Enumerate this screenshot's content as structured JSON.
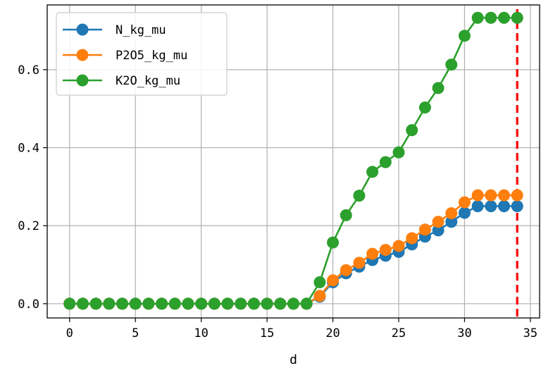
{
  "chart_data": {
    "type": "line",
    "title": "",
    "xlabel": "d",
    "ylabel": "",
    "xlim": [
      -1.7,
      35.7
    ],
    "ylim": [
      -0.0365,
      0.766
    ],
    "xticks": [
      0,
      5,
      10,
      15,
      20,
      25,
      30,
      35
    ],
    "xtick_labels": [
      "0",
      "5",
      "10",
      "15",
      "20",
      "25",
      "30",
      "35"
    ],
    "yticks": [
      0.0,
      0.2,
      0.4,
      0.6
    ],
    "ytick_labels": [
      "0.0",
      "0.2",
      "0.4",
      "0.6"
    ],
    "grid": true,
    "legend_position": "upper-left",
    "marker_line_x": 34,
    "marker_line_color": "#ff0000",
    "x": [
      0,
      1,
      2,
      3,
      4,
      5,
      6,
      7,
      8,
      9,
      10,
      11,
      12,
      13,
      14,
      15,
      16,
      17,
      18,
      19,
      20,
      21,
      22,
      23,
      24,
      25,
      26,
      27,
      28,
      29,
      30,
      31,
      32,
      33,
      34
    ],
    "series": [
      {
        "name": "N_kg_mu",
        "color": "#1f77b4",
        "values": [
          0,
          0,
          0,
          0,
          0,
          0,
          0,
          0,
          0,
          0,
          0,
          0,
          0,
          0,
          0,
          0,
          0,
          0,
          0,
          0.018,
          0.055,
          0.078,
          0.095,
          0.112,
          0.123,
          0.133,
          0.152,
          0.172,
          0.188,
          0.21,
          0.233,
          0.25,
          0.25,
          0.25,
          0.25
        ]
      },
      {
        "name": "P2O5_kg_mu",
        "color": "#ff7f0e",
        "values": [
          0,
          0,
          0,
          0,
          0,
          0,
          0,
          0,
          0,
          0,
          0,
          0,
          0,
          0,
          0,
          0,
          0,
          0,
          0,
          0.02,
          0.06,
          0.086,
          0.105,
          0.128,
          0.138,
          0.148,
          0.168,
          0.19,
          0.21,
          0.232,
          0.26,
          0.278,
          0.278,
          0.278,
          0.278
        ]
      },
      {
        "name": "K2O_kg_mu",
        "color": "#2ca02c",
        "values": [
          0,
          0,
          0,
          0,
          0,
          0,
          0,
          0,
          0,
          0,
          0,
          0,
          0,
          0,
          0,
          0,
          0,
          0,
          0,
          0.055,
          0.157,
          0.227,
          0.277,
          0.338,
          0.363,
          0.388,
          0.445,
          0.503,
          0.553,
          0.613,
          0.687,
          0.733,
          0.733,
          0.733,
          0.733
        ]
      }
    ]
  }
}
